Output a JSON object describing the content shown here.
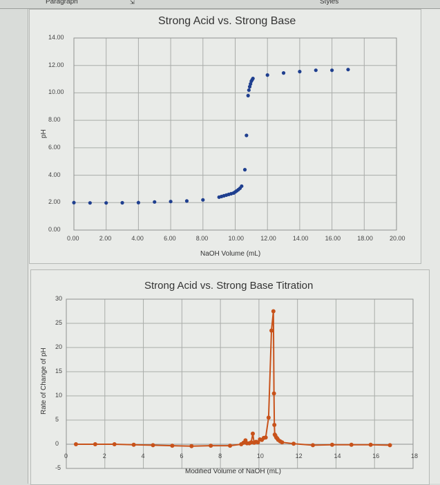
{
  "ribbon": {
    "paragraph_label": "Paragraph",
    "styles_label": "Styles",
    "launcher_icon": "dialog-launcher-icon"
  },
  "chart_data": [
    {
      "type": "scatter",
      "title": "Strong Acid vs. Strong Base",
      "xlabel": "NaOH Volume (mL)",
      "ylabel": "pH",
      "xlim": [
        0,
        20
      ],
      "ylim": [
        0,
        14
      ],
      "x_ticks": [
        "0.00",
        "2.00",
        "4.00",
        "6.00",
        "8.00",
        "10.00",
        "12.00",
        "14.00",
        "16.00",
        "18.00",
        "20.00"
      ],
      "y_ticks": [
        "0.00",
        "2.00",
        "4.00",
        "6.00",
        "8.00",
        "10.00",
        "12.00",
        "14.00"
      ],
      "grid": true,
      "legend": null,
      "marker_color": "#1f3f8f",
      "series": [
        {
          "name": "pH",
          "x": [
            0,
            1,
            2,
            3,
            4,
            5,
            6,
            7,
            8,
            9.0,
            9.15,
            9.3,
            9.45,
            9.6,
            9.75,
            9.9,
            10.0,
            10.1,
            10.2,
            10.3,
            10.4,
            10.6,
            10.7,
            10.8,
            10.85,
            10.9,
            10.95,
            11.0,
            11.05,
            11.1,
            12,
            13,
            14,
            15,
            16,
            17
          ],
          "y": [
            2.0,
            1.98,
            1.98,
            1.99,
            2.0,
            2.05,
            2.08,
            2.12,
            2.2,
            2.4,
            2.45,
            2.5,
            2.55,
            2.6,
            2.65,
            2.7,
            2.78,
            2.86,
            2.95,
            3.05,
            3.2,
            4.4,
            6.9,
            9.8,
            10.2,
            10.45,
            10.65,
            10.85,
            10.95,
            11.05,
            11.3,
            11.45,
            11.55,
            11.65,
            11.65,
            11.7
          ]
        }
      ]
    },
    {
      "type": "line",
      "title": "Strong Acid vs. Strong Base Titration",
      "xlabel": "Modified Volume of NaOH (mL)",
      "ylabel": "Rate of Change of pH",
      "xlim": [
        0,
        18
      ],
      "ylim": [
        -5,
        30
      ],
      "x_ticks": [
        "0",
        "2",
        "4",
        "6",
        "8",
        "10",
        "12",
        "14",
        "16",
        "18"
      ],
      "y_ticks": [
        "-5",
        "0",
        "5",
        "10",
        "15",
        "20",
        "25",
        "30"
      ],
      "grid": true,
      "legend": null,
      "line_color": "#c8521a",
      "series": [
        {
          "name": "Rate of Change of pH",
          "x": [
            0.5,
            1.5,
            2.5,
            3.5,
            4.5,
            5.5,
            6.5,
            7.5,
            8.5,
            9.08,
            9.2,
            9.3,
            9.38,
            9.5,
            9.6,
            9.68,
            9.75,
            9.85,
            9.95,
            10.05,
            10.15,
            10.25,
            10.35,
            10.5,
            10.65,
            10.75,
            10.78,
            10.8,
            10.82,
            10.85,
            10.9,
            10.95,
            11.0,
            11.1,
            11.2,
            11.8,
            12.8,
            13.8,
            14.8,
            15.8,
            16.8
          ],
          "y": [
            0,
            0,
            0,
            -0.1,
            -0.2,
            -0.3,
            -0.4,
            -0.3,
            -0.3,
            0,
            0.3,
            0.8,
            0.2,
            0.2,
            0.4,
            2.2,
            0.3,
            0.5,
            0.4,
            1.0,
            0.9,
            1.3,
            1.4,
            5.5,
            23.5,
            27.5,
            10.5,
            4.0,
            2.0,
            1.8,
            1.4,
            1.2,
            0.9,
            0.6,
            0.4,
            0.1,
            -0.2,
            -0.1,
            -0.1,
            -0.1,
            -0.2
          ]
        }
      ]
    }
  ]
}
